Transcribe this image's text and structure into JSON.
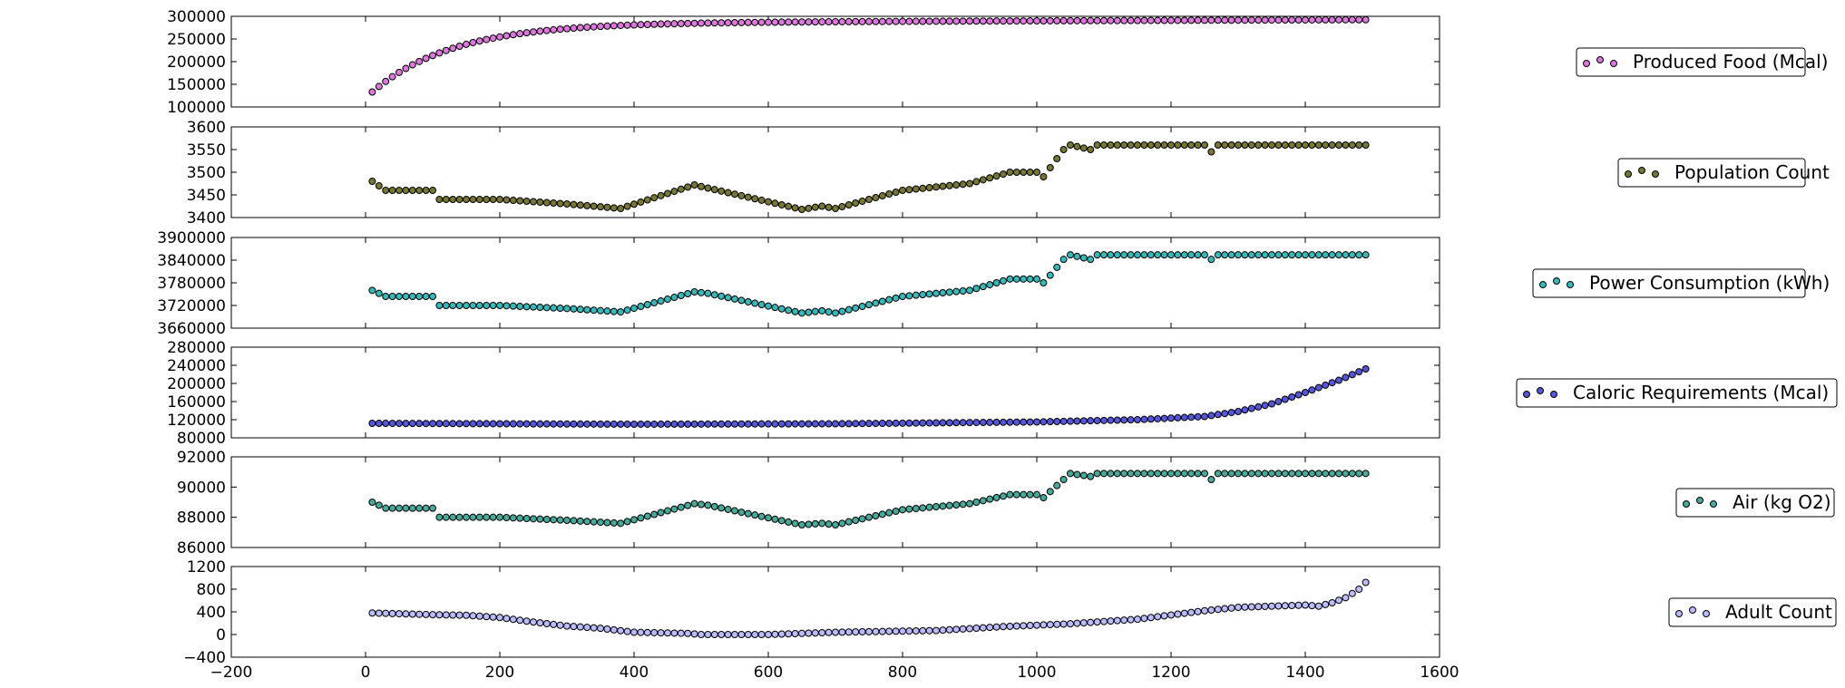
{
  "chart_data": [
    {
      "type": "scatter",
      "name": "Produced Food (Mcal)",
      "color": "#dd77dd",
      "ylim": [
        100000,
        300000
      ],
      "yticks": [
        100000,
        150000,
        200000,
        250000,
        300000
      ],
      "ytick_labels": [
        "100000",
        "150000",
        "200000",
        "250000",
        "300000"
      ],
      "legend_label": "Produced Food (Mcal)",
      "model": {
        "kind": "saturating",
        "start": 133000,
        "end": 285000,
        "tau": 120
      }
    },
    {
      "type": "scatter",
      "name": "Population Count",
      "color": "#777733",
      "ylim": [
        3400,
        3600
      ],
      "yticks": [
        3400,
        3450,
        3500,
        3550,
        3600
      ],
      "ytick_labels": [
        "3400",
        "3450",
        "3500",
        "3550",
        "3600"
      ],
      "legend_label": "Population Count",
      "model": {
        "kind": "piecewise",
        "knots": [
          [
            10,
            3480
          ],
          [
            20,
            3470
          ],
          [
            30,
            3460
          ],
          [
            100,
            3460
          ],
          [
            110,
            3440
          ],
          [
            200,
            3440
          ],
          [
            300,
            3430
          ],
          [
            380,
            3420
          ],
          [
            490,
            3472
          ],
          [
            510,
            3465
          ],
          [
            650,
            3418
          ],
          [
            680,
            3425
          ],
          [
            700,
            3420
          ],
          [
            800,
            3460
          ],
          [
            900,
            3475
          ],
          [
            960,
            3500
          ],
          [
            1000,
            3500
          ],
          [
            1010,
            3490
          ],
          [
            1020,
            3510
          ],
          [
            1040,
            3550
          ],
          [
            1050,
            3560
          ],
          [
            1080,
            3550
          ],
          [
            1090,
            3560
          ],
          [
            1490,
            3560
          ]
        ],
        "outliers": [
          [
            1260,
            3545
          ]
        ]
      }
    },
    {
      "type": "scatter",
      "name": "Power Consumption (kWh)",
      "color": "#33bbbb",
      "ylim": [
        3660000,
        3900000
      ],
      "yticks": [
        3660000,
        3720000,
        3780000,
        3840000,
        3900000
      ],
      "ytick_labels": [
        "3660000",
        "3720000",
        "3780000",
        "3840000",
        "3900000"
      ],
      "legend_label": "Power Consumption (kWh)",
      "model": {
        "kind": "piecewise",
        "knots": [
          [
            10,
            3760000
          ],
          [
            20,
            3752000
          ],
          [
            30,
            3744000
          ],
          [
            100,
            3744000
          ],
          [
            110,
            3720000
          ],
          [
            200,
            3720000
          ],
          [
            300,
            3712000
          ],
          [
            380,
            3703000
          ],
          [
            490,
            3756000
          ],
          [
            510,
            3752000
          ],
          [
            650,
            3700000
          ],
          [
            680,
            3706000
          ],
          [
            700,
            3700000
          ],
          [
            800,
            3744000
          ],
          [
            900,
            3760000
          ],
          [
            960,
            3790000
          ],
          [
            1000,
            3790000
          ],
          [
            1010,
            3780000
          ],
          [
            1020,
            3800000
          ],
          [
            1040,
            3842000
          ],
          [
            1050,
            3854000
          ],
          [
            1080,
            3842000
          ],
          [
            1090,
            3854000
          ],
          [
            1490,
            3854000
          ]
        ],
        "outliers": [
          [
            1260,
            3842000
          ]
        ]
      }
    },
    {
      "type": "scatter",
      "name": "Caloric Requirements (Mcal)",
      "color": "#5555dd",
      "ylim": [
        80000,
        280000
      ],
      "yticks": [
        80000,
        120000,
        160000,
        200000,
        240000,
        280000
      ],
      "ytick_labels": [
        "80000",
        "120000",
        "160000",
        "200000",
        "240000",
        "280000"
      ],
      "legend_label": "Caloric Requirements (Mcal)",
      "model": {
        "kind": "piecewise",
        "knots": [
          [
            10,
            112000
          ],
          [
            400,
            110000
          ],
          [
            700,
            111000
          ],
          [
            1000,
            115000
          ],
          [
            1150,
            120000
          ],
          [
            1250,
            127000
          ],
          [
            1300,
            138000
          ],
          [
            1350,
            155000
          ],
          [
            1400,
            180000
          ],
          [
            1450,
            207000
          ],
          [
            1490,
            232000
          ]
        ],
        "outliers": []
      }
    },
    {
      "type": "scatter",
      "name": "Air (kg O2)",
      "color": "#44aa99",
      "ylim": [
        86000,
        92000
      ],
      "yticks": [
        86000,
        88000,
        90000,
        92000
      ],
      "ytick_labels": [
        "86000",
        "88000",
        "90000",
        "92000"
      ],
      "legend_label": "Air (kg O2)",
      "model": {
        "kind": "piecewise",
        "knots": [
          [
            10,
            89000
          ],
          [
            20,
            88800
          ],
          [
            30,
            88600
          ],
          [
            100,
            88600
          ],
          [
            110,
            88000
          ],
          [
            200,
            88000
          ],
          [
            300,
            87800
          ],
          [
            380,
            87600
          ],
          [
            490,
            88900
          ],
          [
            510,
            88800
          ],
          [
            650,
            87500
          ],
          [
            680,
            87600
          ],
          [
            700,
            87500
          ],
          [
            800,
            88500
          ],
          [
            900,
            88900
          ],
          [
            960,
            89500
          ],
          [
            1000,
            89500
          ],
          [
            1010,
            89300
          ],
          [
            1020,
            89700
          ],
          [
            1040,
            90500
          ],
          [
            1050,
            90900
          ],
          [
            1080,
            90700
          ],
          [
            1090,
            90900
          ],
          [
            1490,
            90900
          ]
        ],
        "outliers": [
          [
            1260,
            90500
          ]
        ]
      }
    },
    {
      "type": "scatter",
      "name": "Adult Count",
      "color": "#bbbbff",
      "ylim": [
        -400,
        1200
      ],
      "yticks": [
        -400,
        0,
        400,
        800,
        1200
      ],
      "ytick_labels": [
        "−400",
        "0",
        "400",
        "800",
        "1200"
      ],
      "legend_label": "Adult Count",
      "model": {
        "kind": "piecewise",
        "knots": [
          [
            10,
            380
          ],
          [
            100,
            350
          ],
          [
            150,
            340
          ],
          [
            200,
            300
          ],
          [
            250,
            220
          ],
          [
            300,
            150
          ],
          [
            350,
            110
          ],
          [
            400,
            40
          ],
          [
            480,
            20
          ],
          [
            500,
            0
          ],
          [
            600,
            0
          ],
          [
            700,
            40
          ],
          [
            850,
            70
          ],
          [
            950,
            140
          ],
          [
            1050,
            190
          ],
          [
            1150,
            270
          ],
          [
            1250,
            420
          ],
          [
            1300,
            480
          ],
          [
            1350,
            500
          ],
          [
            1400,
            520
          ],
          [
            1420,
            500
          ],
          [
            1440,
            560
          ],
          [
            1460,
            650
          ],
          [
            1480,
            800
          ],
          [
            1490,
            920
          ]
        ],
        "outliers": []
      }
    }
  ],
  "x": {
    "start": 10,
    "step": 10,
    "count": 149,
    "xlim": [
      -200,
      1600
    ],
    "ticks": [
      -200,
      0,
      200,
      400,
      600,
      800,
      1000,
      1200,
      1400,
      1600
    ],
    "tick_labels": [
      "−200",
      "0",
      "200",
      "400",
      "600",
      "800",
      "1000",
      "1200",
      "1400",
      "1600"
    ]
  },
  "legend_placement": "right, outside each panel",
  "grid": false
}
